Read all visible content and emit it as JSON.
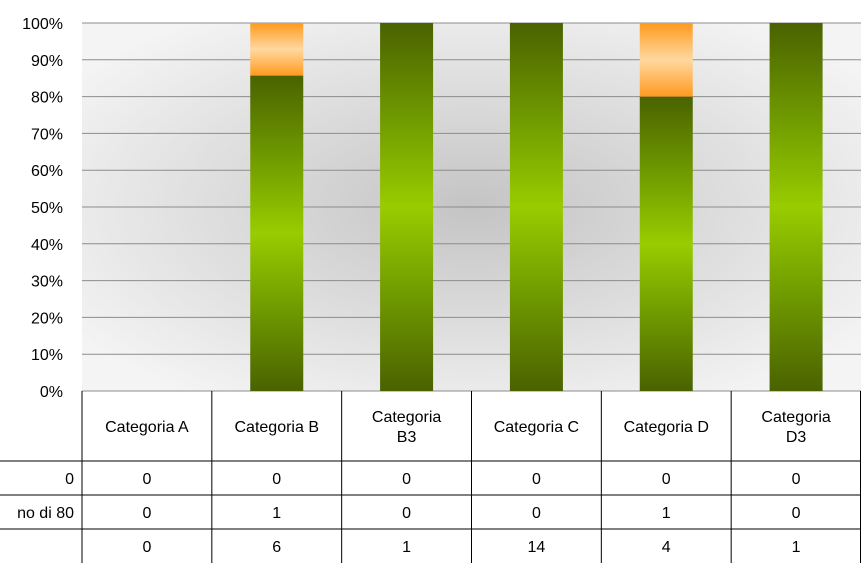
{
  "chart_data": {
    "type": "bar",
    "stacked": "percent",
    "categories": [
      [
        "Categoria A"
      ],
      [
        "Categoria B"
      ],
      [
        "Categoria",
        "B3"
      ],
      [
        "Categoria C"
      ],
      [
        "Categoria D"
      ],
      [
        "Categoria",
        "D3"
      ]
    ],
    "yticks": [
      "0%",
      "10%",
      "20%",
      "30%",
      "40%",
      "50%",
      "60%",
      "70%",
      "80%",
      "90%",
      "100%"
    ],
    "ylim": [
      0,
      100
    ],
    "grid": true,
    "series": [
      {
        "name": "0",
        "values": [
          0,
          0,
          0,
          0,
          0,
          0
        ],
        "color": "#1f4e9c"
      },
      {
        "name": "no di 80",
        "values": [
          0,
          1,
          0,
          0,
          1,
          0
        ],
        "colors": [
          "#ff9a1e",
          "#ffd59a"
        ]
      },
      {
        "name": "",
        "values": [
          0,
          6,
          1,
          14,
          4,
          1
        ],
        "colors": [
          "#4a6a00",
          "#99cc00"
        ]
      }
    ],
    "table_cell_values": [
      [
        "0",
        "0",
        "0",
        "0",
        "0",
        "0"
      ],
      [
        "0",
        "1",
        "0",
        "0",
        "1",
        "0"
      ],
      [
        "0",
        "6",
        "1",
        "14",
        "4",
        "1"
      ]
    ]
  }
}
